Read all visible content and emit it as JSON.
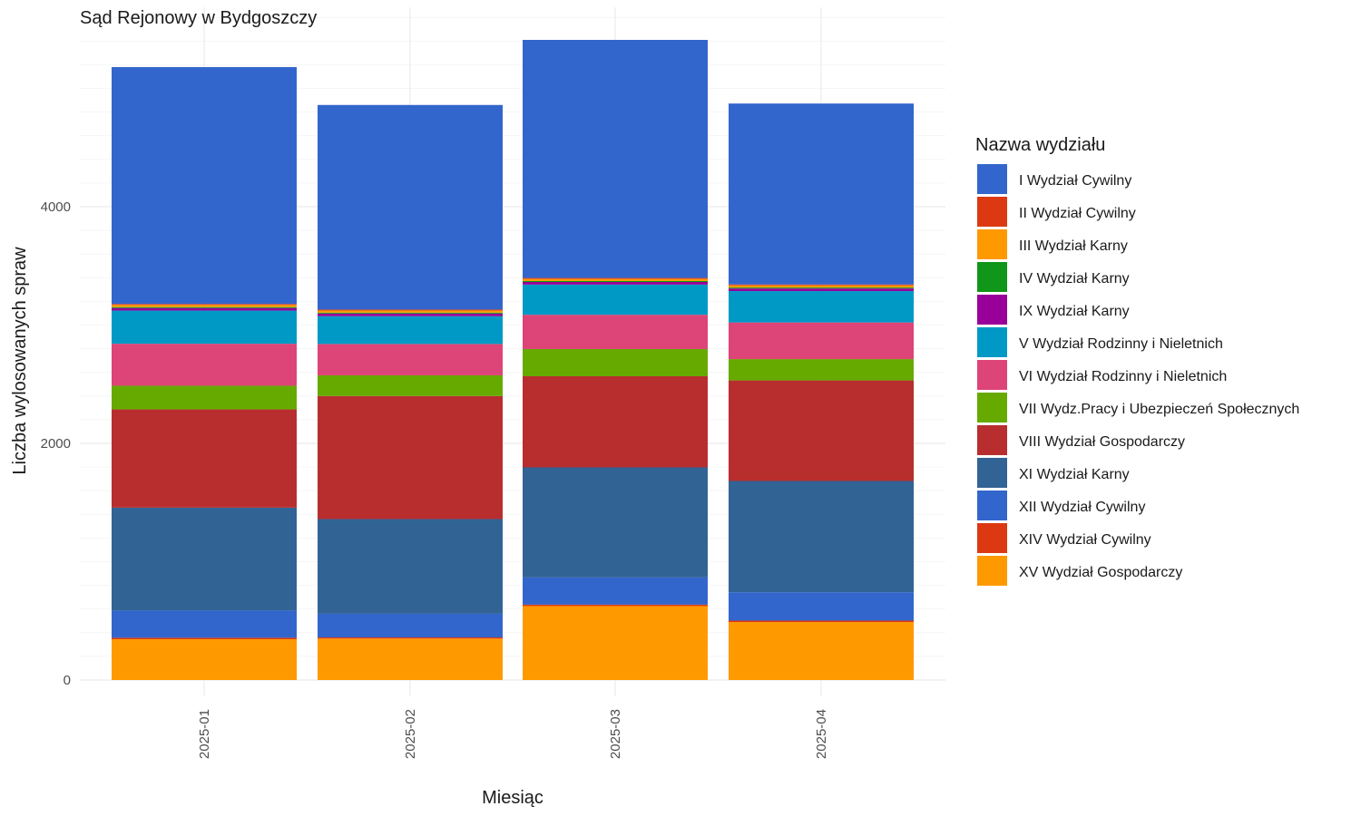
{
  "chart_data": {
    "type": "bar",
    "stacked": true,
    "title": "Sąd Rejonowy w Bydgoszczy",
    "xlabel": "Miesiąc",
    "ylabel": "Liczba wylosowanych spraw",
    "categories": [
      "2025-01",
      "2025-02",
      "2025-03",
      "2025-04"
    ],
    "ylim": [
      0,
      5600
    ],
    "yticks": [
      0,
      2000,
      4000
    ],
    "grid": true,
    "legend": {
      "title": "Nazwa wydziału",
      "position": "right"
    },
    "series": [
      {
        "name": "XV Wydział Gospodarczy",
        "color": "#FF9900",
        "values": [
          345,
          350,
          625,
          490
        ]
      },
      {
        "name": "XIV Wydział Cywilny",
        "color": "#DC3912",
        "values": [
          12,
          10,
          12,
          12
        ]
      },
      {
        "name": "XII Wydział Cywilny",
        "color": "#3366CC",
        "values": [
          230,
          200,
          230,
          240
        ]
      },
      {
        "name": "XI Wydział Karny",
        "color": "#316395",
        "values": [
          870,
          800,
          930,
          940
        ]
      },
      {
        "name": "VIII Wydział Gospodarczy",
        "color": "#B82E2E",
        "values": [
          830,
          1040,
          770,
          850
        ]
      },
      {
        "name": "VII Wydz.Pracy i Ubezpieczeń Społecznych",
        "color": "#66AA00",
        "values": [
          200,
          175,
          230,
          180
        ]
      },
      {
        "name": "VI Wydział Rodzinny i Nieletnich",
        "color": "#DD4477",
        "values": [
          355,
          265,
          290,
          310
        ]
      },
      {
        "name": "V Wydział Rodzinny i Nieletnich",
        "color": "#0099C6",
        "values": [
          280,
          235,
          255,
          265
        ]
      },
      {
        "name": "IX Wydział Karny",
        "color": "#990099",
        "values": [
          22,
          22,
          22,
          22
        ]
      },
      {
        "name": "IV Wydział Karny",
        "color": "#109618",
        "values": [
          8,
          8,
          8,
          8
        ]
      },
      {
        "name": "III Wydział Karny",
        "color": "#FF9900",
        "values": [
          18,
          18,
          18,
          18
        ]
      },
      {
        "name": "II Wydział Cywilny",
        "color": "#DC3912",
        "values": [
          8,
          8,
          8,
          8
        ]
      },
      {
        "name": "I Wydział Cywilny",
        "color": "#3366CC",
        "values": [
          2002,
          1729,
          2012,
          1529
        ]
      }
    ],
    "legend_order": [
      "I Wydział Cywilny",
      "II Wydział Cywilny",
      "III Wydział Karny",
      "IV Wydział Karny",
      "IX Wydział Karny",
      "V Wydział Rodzinny i Nieletnich",
      "VI Wydział Rodzinny i Nieletnich",
      "VII Wydz.Pracy i Ubezpieczeń Społecznych",
      "VIII Wydział Gospodarczy",
      "XI Wydział Karny",
      "XII Wydział Cywilny",
      "XIV Wydział Cywilny",
      "XV Wydział Gospodarczy"
    ]
  }
}
